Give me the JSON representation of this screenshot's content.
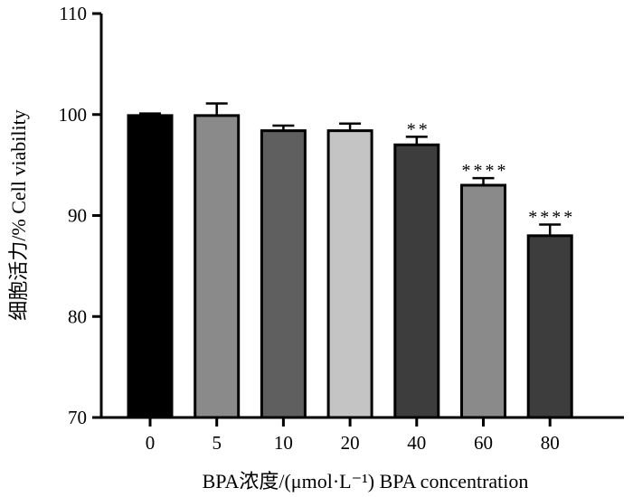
{
  "chart_data": {
    "type": "bar",
    "categories": [
      "0",
      "5",
      "10",
      "20",
      "40",
      "60",
      "80"
    ],
    "values": [
      99.9,
      99.9,
      98.4,
      98.4,
      97.0,
      93.0,
      88.0
    ],
    "errors": [
      0.2,
      1.2,
      0.5,
      0.7,
      0.8,
      0.7,
      1.1
    ],
    "significance": [
      "",
      "",
      "",
      "",
      "**",
      "****",
      "****"
    ],
    "bar_colors": [
      "#000000",
      "#8a8a8a",
      "#5f5f5f",
      "#c4c4c4",
      "#3d3d3d",
      "#8a8a8a",
      "#3d3d3d"
    ],
    "title": "",
    "xlabel": "BPA浓度/(μmol·L⁻¹) BPA concentration",
    "ylabel": "细胞活力/% Cell viability",
    "ylim": [
      70,
      110
    ],
    "yticks": [
      "70",
      "80",
      "90",
      "100",
      "110"
    ],
    "grid": false,
    "legend": "none"
  }
}
